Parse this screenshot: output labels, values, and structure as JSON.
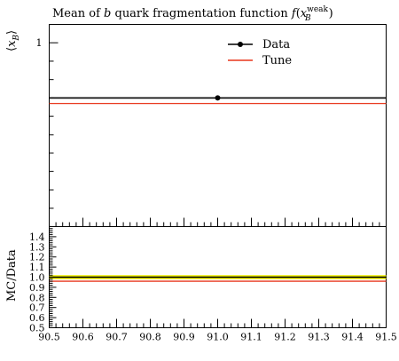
{
  "chart_data": [
    {
      "type": "line",
      "title": "Mean of b quark fragmentation function f(x_B^weak)",
      "title_parts": {
        "prefix": "Mean of ",
        "b": "b",
        "middle": " quark fragmentation function ",
        "f": "f",
        "open": "(",
        "x": "x",
        "sup": "weak",
        "sub": "B",
        "close": ")"
      },
      "ylabel_parts": {
        "open": "⟨",
        "x": "x",
        "sub": "B",
        "close": "⟩"
      },
      "xlim": [
        90.5,
        91.5
      ],
      "ylim": [
        0.0,
        1.1
      ],
      "ytick_labels": [
        {
          "value": 1,
          "label": "1"
        }
      ],
      "legend": {
        "position": "top-right",
        "entries": [
          {
            "name": "Data",
            "color": "#000000",
            "marker": "circle"
          },
          {
            "name": "Tune",
            "color": "#e8361b",
            "marker": "none"
          }
        ]
      },
      "series": [
        {
          "name": "Data",
          "color": "#000000",
          "x": [
            91.0
          ],
          "y": [
            0.7
          ],
          "xrange": [
            90.5,
            91.5
          ]
        },
        {
          "name": "Tune",
          "color": "#e8361b",
          "x": [
            91.0
          ],
          "y": [
            0.67
          ],
          "xrange": [
            90.5,
            91.5
          ]
        }
      ]
    },
    {
      "type": "line",
      "ylabel": "MC/Data",
      "ylim": [
        0.5,
        1.5
      ],
      "xlim": [
        90.5,
        91.5
      ],
      "yticks": [
        0.5,
        0.6,
        0.7,
        0.8,
        0.9,
        1.0,
        1.1,
        1.2,
        1.3,
        1.4
      ],
      "ytick_labels": [
        "0.5",
        "0.6",
        "0.7",
        "0.8",
        "0.9",
        "1.0",
        "1.1",
        "1.2",
        "1.3",
        "1.4"
      ],
      "xticks": [
        90.5,
        90.6,
        90.7,
        90.8,
        90.9,
        91.0,
        91.1,
        91.2,
        91.3,
        91.4,
        91.5
      ],
      "xtick_labels": [
        "90.5",
        "90.6",
        "90.7",
        "90.8",
        "90.9",
        "91.0",
        "91.1",
        "91.2",
        "91.3",
        "91.4",
        "91.5"
      ],
      "band": {
        "low": 0.98,
        "high": 1.02,
        "color": "#f0f000"
      },
      "series": [
        {
          "name": "Data",
          "color": "#000000",
          "y": 1.0
        },
        {
          "name": "Tune",
          "color": "#e8361b",
          "y": 0.96
        }
      ]
    }
  ]
}
